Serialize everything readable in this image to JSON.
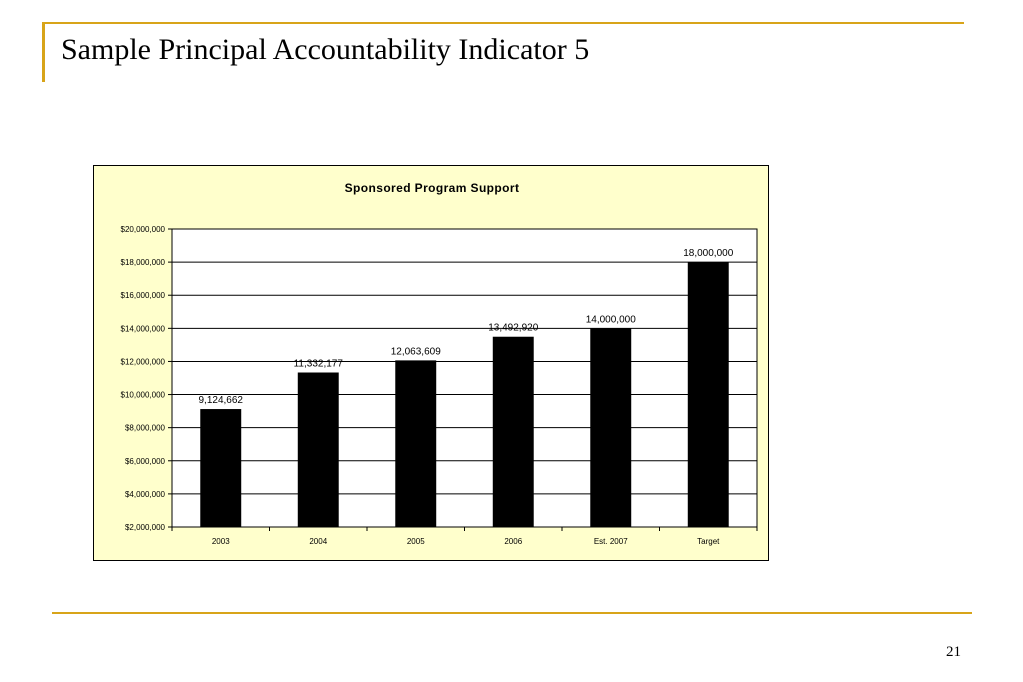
{
  "slide": {
    "title": "Sample Principal Accountability Indicator 5",
    "page_number": "21",
    "accent_color": "#D8A419"
  },
  "chart_data": {
    "type": "bar",
    "title": "Sponsored Program Support",
    "categories": [
      "2003",
      "2004",
      "2005",
      "2006",
      "Est. 2007",
      "Target"
    ],
    "values": [
      9124662,
      11332177,
      12063609,
      13492920,
      14000000,
      18000000
    ],
    "data_labels": [
      "9,124,662",
      "11,332,177",
      "12,063,609",
      "13,492,920",
      "14,000,000",
      "18,000,000"
    ],
    "ylim": [
      2000000,
      20000000
    ],
    "yticks": [
      2000000,
      4000000,
      6000000,
      8000000,
      10000000,
      12000000,
      14000000,
      16000000,
      18000000,
      20000000
    ],
    "ytick_labels": [
      "$2,000,000",
      "$4,000,000",
      "$6,000,000",
      "$8,000,000",
      "$10,000,000",
      "$12,000,000",
      "$14,000,000",
      "$16,000,000",
      "$18,000,000",
      "$20,000,000"
    ],
    "grid": true,
    "legend": "none",
    "bar_color": "#000000",
    "plot_background": "#FFFFFF",
    "chart_background": "#FFFFCC"
  }
}
